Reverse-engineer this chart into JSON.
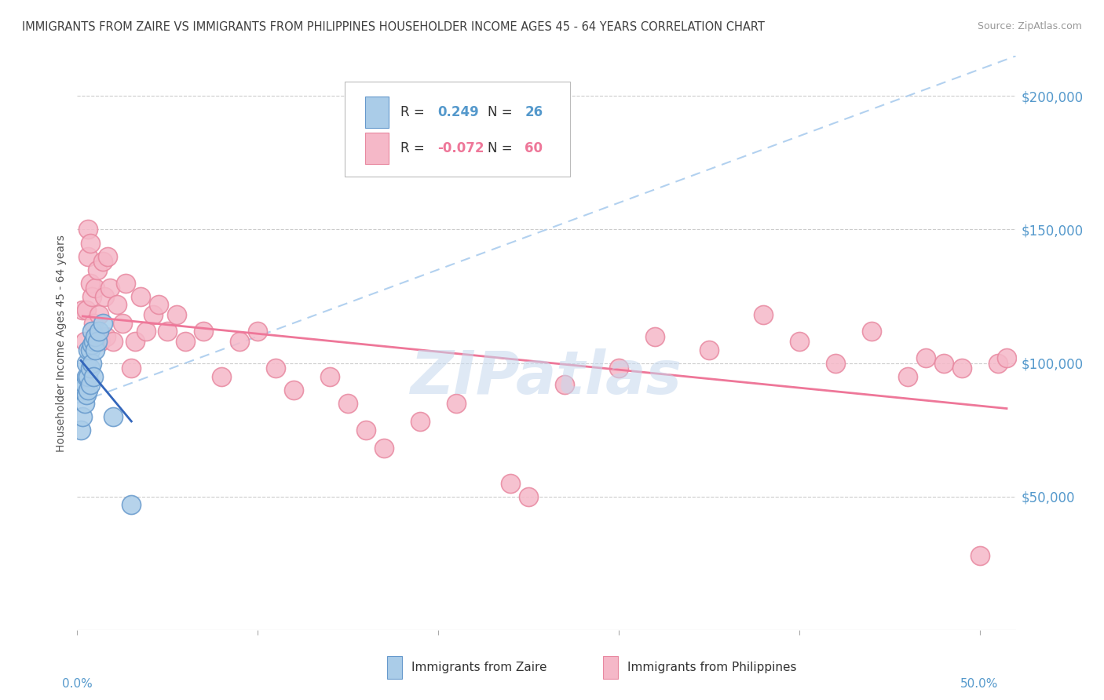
{
  "title": "IMMIGRANTS FROM ZAIRE VS IMMIGRANTS FROM PHILIPPINES HOUSEHOLDER INCOME AGES 45 - 64 YEARS CORRELATION CHART",
  "source": "Source: ZipAtlas.com",
  "ylabel": "Householder Income Ages 45 - 64 years",
  "ytick_values": [
    50000,
    100000,
    150000,
    200000
  ],
  "ytick_labels": [
    "$50,000",
    "$100,000",
    "$150,000",
    "$200,000"
  ],
  "ylim": [
    0,
    215000
  ],
  "xlim": [
    0.0,
    0.52
  ],
  "r_zaire": 0.249,
  "n_zaire": 26,
  "r_philippines": -0.072,
  "n_philippines": 60,
  "zaire_fill": "#aacce8",
  "zaire_edge": "#6699cc",
  "philippines_fill": "#f5b8c8",
  "philippines_edge": "#e888a0",
  "zaire_line_color": "#3366bb",
  "philippines_line_color": "#ee7799",
  "dash_line_color": "#aaccee",
  "bg_color": "#ffffff",
  "grid_color": "#cccccc",
  "title_color": "#404040",
  "axis_tick_color": "#5599cc",
  "watermark": "ZIPatlas",
  "legend_border_color": "#cccccc",
  "zaire_x": [
    0.002,
    0.003,
    0.003,
    0.004,
    0.004,
    0.005,
    0.005,
    0.005,
    0.006,
    0.006,
    0.006,
    0.007,
    0.007,
    0.007,
    0.008,
    0.008,
    0.008,
    0.009,
    0.009,
    0.01,
    0.01,
    0.011,
    0.012,
    0.014,
    0.02,
    0.03
  ],
  "zaire_y": [
    75000,
    80000,
    90000,
    85000,
    92000,
    88000,
    95000,
    100000,
    90000,
    95000,
    105000,
    92000,
    98000,
    105000,
    100000,
    107000,
    112000,
    95000,
    108000,
    105000,
    110000,
    108000,
    112000,
    115000,
    80000,
    47000
  ],
  "philippines_x": [
    0.003,
    0.004,
    0.005,
    0.006,
    0.006,
    0.007,
    0.007,
    0.008,
    0.009,
    0.01,
    0.011,
    0.012,
    0.013,
    0.014,
    0.015,
    0.016,
    0.017,
    0.018,
    0.02,
    0.022,
    0.025,
    0.027,
    0.03,
    0.032,
    0.035,
    0.038,
    0.042,
    0.045,
    0.05,
    0.055,
    0.06,
    0.07,
    0.08,
    0.09,
    0.1,
    0.11,
    0.12,
    0.14,
    0.15,
    0.16,
    0.17,
    0.19,
    0.21,
    0.24,
    0.25,
    0.27,
    0.3,
    0.32,
    0.35,
    0.38,
    0.4,
    0.42,
    0.44,
    0.46,
    0.47,
    0.48,
    0.49,
    0.5,
    0.51,
    0.515
  ],
  "philippines_y": [
    120000,
    108000,
    120000,
    140000,
    150000,
    130000,
    145000,
    125000,
    115000,
    128000,
    135000,
    118000,
    108000,
    138000,
    125000,
    110000,
    140000,
    128000,
    108000,
    122000,
    115000,
    130000,
    98000,
    108000,
    125000,
    112000,
    118000,
    122000,
    112000,
    118000,
    108000,
    112000,
    95000,
    108000,
    112000,
    98000,
    90000,
    95000,
    85000,
    75000,
    68000,
    78000,
    85000,
    55000,
    50000,
    92000,
    98000,
    110000,
    105000,
    118000,
    108000,
    100000,
    112000,
    95000,
    102000,
    100000,
    98000,
    28000,
    100000,
    102000
  ]
}
